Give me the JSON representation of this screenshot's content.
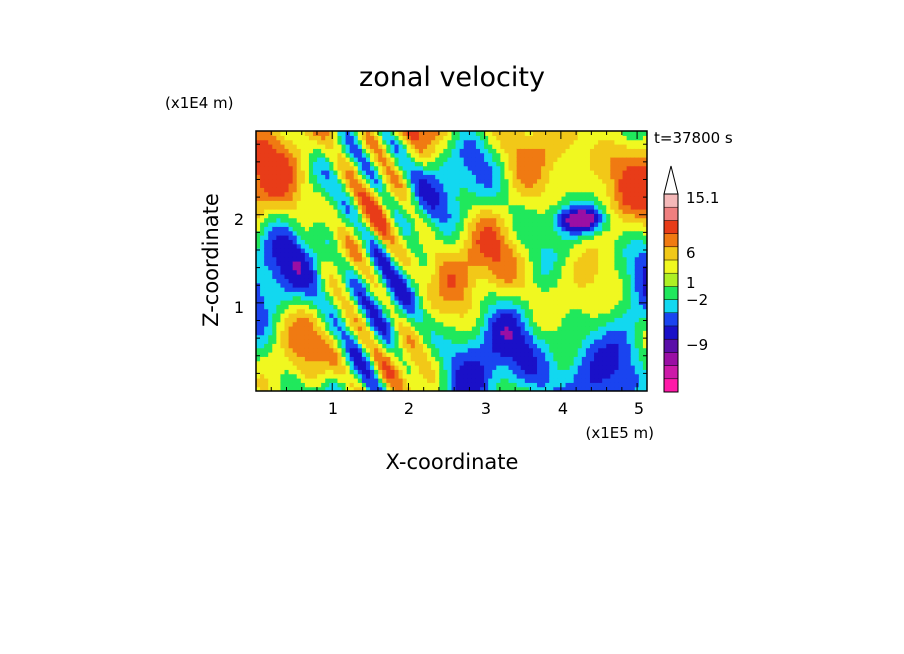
{
  "chart_data": {
    "type": "heatmap",
    "title": "zonal velocity",
    "xlabel": "X-coordinate",
    "ylabel": "Z-coordinate",
    "x_scale_label": "(x1E5 m)",
    "y_scale_label": "(x1E4 m)",
    "time_label": "t=37800 s",
    "x_ticks": [
      "1",
      "2",
      "3",
      "4",
      "5"
    ],
    "y_ticks": [
      "1",
      "2"
    ],
    "xlim": [
      0,
      5.13
    ],
    "ylim": [
      0,
      2.95
    ],
    "colorbar": {
      "labels": [
        "15.1",
        "6",
        "1",
        "−2",
        "−9"
      ],
      "bands": [
        {
          "color": "#ff1aa8"
        },
        {
          "color": "#cc1aa8"
        },
        {
          "color": "#9a0fa4"
        },
        {
          "color": "#5a0ea8"
        },
        {
          "color": "#1a10c8"
        },
        {
          "color": "#1a44f0"
        },
        {
          "color": "#12d8f0"
        },
        {
          "color": "#20e85c"
        },
        {
          "color": "#aef024"
        },
        {
          "color": "#f0f820"
        },
        {
          "color": "#f2c818"
        },
        {
          "color": "#f07a12"
        },
        {
          "color": "#e83c18"
        },
        {
          "color": "#ef7f7f"
        },
        {
          "color": "#f4b8b8"
        }
      ],
      "extend_color": "#ffffff"
    },
    "field_colors": {
      "neg_strong": "#1a10c8",
      "neg_mid": "#1a44f0",
      "neg_weak": "#12d8f0",
      "zero": "#20e85c",
      "pos_weak": "#f0f820",
      "pos_mid": "#f2c818",
      "pos_strong": "#f07a12",
      "pos_max": "#e83c18",
      "minimum": "#9a0fa4"
    }
  }
}
